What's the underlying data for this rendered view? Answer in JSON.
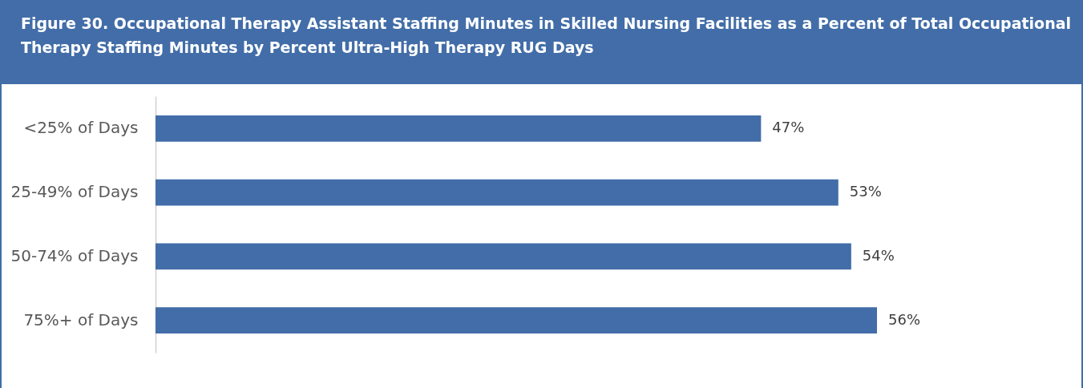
{
  "chart_data": {
    "type": "bar",
    "orientation": "horizontal",
    "title": "Figure 30. Occupational Therapy Assistant Staffing Minutes in Skilled Nursing Facilities as a Percent of Total Occupational Therapy Staffing Minutes by Percent Ultra-High Therapy RUG Days",
    "categories": [
      "<25% of Days",
      "25-49% of Days",
      "50-74% of Days",
      "75%+ of Days"
    ],
    "values": [
      47,
      53,
      54,
      56
    ],
    "value_labels": [
      "47%",
      "53%",
      "54%",
      "56%"
    ],
    "color": "#426da8",
    "tick_labels": "y"
  }
}
